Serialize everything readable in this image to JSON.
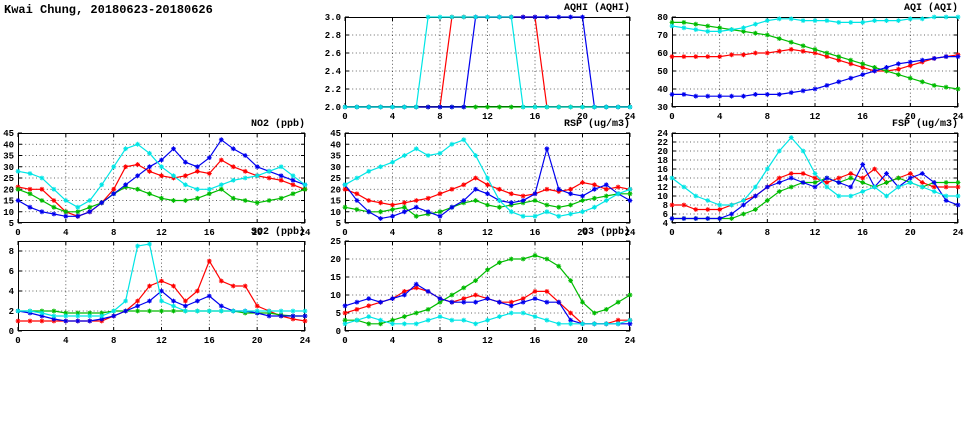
{
  "page_title": "Kwai Chung, 20180623-20180626",
  "series_colors": {
    "red": "#ff0000",
    "green": "#00bb00",
    "blue": "#0000ee",
    "cyan": "#00e5e5"
  },
  "chart_data": [
    {
      "type": "line",
      "id": "aqhi",
      "title": "AQHI (AQHI)",
      "xlim": [
        0,
        24
      ],
      "ylim": [
        2,
        3
      ],
      "x_start": 0,
      "x_step": 1,
      "xticks": [
        "0",
        "4",
        "8",
        "12",
        "16",
        "20",
        "24"
      ],
      "yticks": [
        "2.0",
        "2.2",
        "2.4",
        "2.6",
        "2.8",
        "3.0"
      ],
      "grid": true,
      "legend": "none",
      "series": [
        {
          "name": "red",
          "color": "#ff0000",
          "values": [
            2,
            2,
            2,
            2,
            2,
            2,
            2,
            2,
            2,
            3,
            3,
            3,
            3,
            3,
            3,
            3,
            3,
            2,
            2,
            2,
            2,
            2,
            2,
            2,
            2
          ]
        },
        {
          "name": "green",
          "color": "#00bb00",
          "values": [
            2,
            2,
            2,
            2,
            2,
            2,
            2,
            2,
            2,
            2,
            2,
            2,
            2,
            2,
            2,
            2,
            2,
            2,
            2,
            2,
            2,
            2,
            2,
            2,
            2
          ]
        },
        {
          "name": "blue",
          "color": "#0000ee",
          "values": [
            2,
            2,
            2,
            2,
            2,
            2,
            2,
            2,
            2,
            2,
            2,
            3,
            3,
            3,
            3,
            3,
            3,
            3,
            3,
            3,
            3,
            2,
            2,
            2,
            2
          ]
        },
        {
          "name": "cyan",
          "color": "#00e5e5",
          "values": [
            2,
            2,
            2,
            2,
            2,
            2,
            2,
            3,
            3,
            3,
            3,
            3,
            3,
            3,
            3,
            2,
            2,
            2,
            2,
            2,
            2,
            2,
            2,
            2,
            2
          ]
        }
      ]
    },
    {
      "type": "line",
      "id": "aqi",
      "title": "AQI (AQI)",
      "xlim": [
        0,
        24
      ],
      "ylim": [
        30,
        80
      ],
      "x_start": 0,
      "x_step": 1,
      "xticks": [
        "0",
        "4",
        "8",
        "12",
        "16",
        "20",
        "24"
      ],
      "yticks": [
        "30",
        "40",
        "50",
        "60",
        "70",
        "80"
      ],
      "grid": true,
      "legend": "none",
      "series": [
        {
          "name": "red",
          "color": "#ff0000",
          "values": [
            58,
            58,
            58,
            58,
            58,
            59,
            59,
            60,
            60,
            61,
            62,
            61,
            60,
            58,
            56,
            54,
            52,
            50,
            50,
            51,
            53,
            55,
            57,
            58,
            59
          ]
        },
        {
          "name": "green",
          "color": "#00bb00",
          "values": [
            77,
            77,
            76,
            75,
            74,
            73,
            72,
            71,
            70,
            68,
            66,
            64,
            62,
            60,
            58,
            56,
            54,
            52,
            50,
            48,
            46,
            44,
            42,
            41,
            40
          ]
        },
        {
          "name": "blue",
          "color": "#0000ee",
          "values": [
            37,
            37,
            36,
            36,
            36,
            36,
            36,
            37,
            37,
            37,
            38,
            39,
            40,
            42,
            44,
            46,
            48,
            50,
            52,
            54,
            55,
            56,
            57,
            58,
            58
          ]
        },
        {
          "name": "cyan",
          "color": "#00e5e5",
          "values": [
            75,
            74,
            73,
            72,
            72,
            73,
            74,
            76,
            78,
            79,
            79,
            78,
            78,
            78,
            77,
            77,
            77,
            78,
            78,
            78,
            79,
            79,
            80,
            80,
            80
          ]
        }
      ]
    },
    {
      "type": "line",
      "id": "no2",
      "title": "NO2 (ppb)",
      "xlim": [
        0,
        24
      ],
      "ylim": [
        5,
        45
      ],
      "x_start": 0,
      "x_step": 1,
      "xticks": [
        "0",
        "4",
        "8",
        "12",
        "16",
        "20",
        "24"
      ],
      "yticks": [
        "5",
        "10",
        "15",
        "20",
        "25",
        "30",
        "35",
        "40",
        "45"
      ],
      "grid": true,
      "legend": "none",
      "series": [
        {
          "name": "red",
          "color": "#ff0000",
          "values": [
            21,
            20,
            20,
            15,
            10,
            8,
            10,
            14,
            20,
            30,
            31,
            28,
            26,
            25,
            26,
            28,
            27,
            33,
            30,
            28,
            26,
            25,
            24,
            22,
            20
          ]
        },
        {
          "name": "green",
          "color": "#00bb00",
          "values": [
            20,
            18,
            15,
            12,
            10,
            10,
            12,
            14,
            18,
            21,
            20,
            18,
            16,
            15,
            15,
            16,
            18,
            20,
            16,
            15,
            14,
            15,
            16,
            18,
            20
          ]
        },
        {
          "name": "blue",
          "color": "#0000ee",
          "values": [
            15,
            12,
            10,
            9,
            8,
            8,
            10,
            14,
            18,
            22,
            26,
            30,
            33,
            38,
            32,
            30,
            34,
            42,
            38,
            35,
            30,
            28,
            26,
            24,
            22
          ]
        },
        {
          "name": "cyan",
          "color": "#00e5e5",
          "values": [
            28,
            27,
            25,
            20,
            15,
            12,
            15,
            22,
            30,
            38,
            40,
            36,
            30,
            26,
            22,
            20,
            20,
            22,
            24,
            25,
            26,
            28,
            30,
            26,
            22
          ]
        }
      ]
    },
    {
      "type": "line",
      "id": "rsp",
      "title": "RSP (ug/m3)",
      "xlim": [
        0,
        24
      ],
      "ylim": [
        5,
        45
      ],
      "x_start": 0,
      "x_step": 1,
      "xticks": [
        "0",
        "4",
        "8",
        "12",
        "16",
        "20",
        "24"
      ],
      "yticks": [
        "5",
        "10",
        "15",
        "20",
        "25",
        "30",
        "35",
        "40",
        "45"
      ],
      "grid": true,
      "legend": "none",
      "series": [
        {
          "name": "red",
          "color": "#ff0000",
          "values": [
            20,
            18,
            15,
            14,
            13,
            14,
            15,
            16,
            18,
            20,
            22,
            25,
            22,
            20,
            18,
            17,
            18,
            20,
            19,
            20,
            23,
            22,
            20,
            21,
            20
          ]
        },
        {
          "name": "green",
          "color": "#00bb00",
          "values": [
            12,
            11,
            10,
            10,
            11,
            12,
            8,
            9,
            10,
            12,
            14,
            15,
            13,
            12,
            13,
            14,
            15,
            13,
            12,
            13,
            15,
            16,
            17,
            18,
            18
          ]
        },
        {
          "name": "blue",
          "color": "#0000ee",
          "values": [
            22,
            15,
            10,
            7,
            8,
            10,
            12,
            10,
            8,
            12,
            15,
            20,
            18,
            15,
            14,
            15,
            18,
            38,
            20,
            18,
            17,
            20,
            22,
            18,
            15
          ]
        },
        {
          "name": "cyan",
          "color": "#00e5e5",
          "values": [
            22,
            25,
            28,
            30,
            32,
            35,
            38,
            35,
            36,
            40,
            42,
            35,
            25,
            15,
            10,
            8,
            8,
            10,
            8,
            9,
            10,
            12,
            15,
            18,
            20
          ]
        }
      ]
    },
    {
      "type": "line",
      "id": "fsp",
      "title": "FSP (ug/m3)",
      "xlim": [
        0,
        24
      ],
      "ylim": [
        4,
        24
      ],
      "x_start": 0,
      "x_step": 1,
      "xticks": [
        "0",
        "4",
        "8",
        "12",
        "16",
        "20",
        "24"
      ],
      "yticks": [
        "4",
        "6",
        "8",
        "10",
        "12",
        "14",
        "16",
        "18",
        "20",
        "22",
        "24"
      ],
      "grid": true,
      "legend": "none",
      "series": [
        {
          "name": "red",
          "color": "#ff0000",
          "values": [
            8,
            8,
            7,
            7,
            7,
            8,
            9,
            10,
            12,
            14,
            15,
            15,
            14,
            13,
            14,
            15,
            14,
            16,
            13,
            14,
            15,
            13,
            12,
            12,
            12
          ]
        },
        {
          "name": "green",
          "color": "#00bb00",
          "values": [
            5,
            5,
            5,
            5,
            5,
            5,
            6,
            7,
            9,
            11,
            12,
            13,
            13,
            14,
            13,
            14,
            13,
            12,
            13,
            14,
            13,
            12,
            13,
            13,
            13
          ]
        },
        {
          "name": "blue",
          "color": "#0000ee",
          "values": [
            5,
            5,
            5,
            5,
            5,
            6,
            8,
            10,
            12,
            13,
            14,
            13,
            12,
            14,
            13,
            12,
            17,
            12,
            15,
            12,
            14,
            15,
            13,
            9,
            8
          ]
        },
        {
          "name": "cyan",
          "color": "#00e5e5",
          "values": [
            14,
            12,
            10,
            9,
            8,
            8,
            9,
            12,
            16,
            20,
            23,
            20,
            15,
            12,
            10,
            10,
            11,
            12,
            10,
            12,
            13,
            12,
            11,
            10,
            10
          ]
        }
      ]
    },
    {
      "type": "line",
      "id": "so2",
      "title": "SO2 (ppb)",
      "xlim": [
        0,
        24
      ],
      "ylim": [
        0,
        9
      ],
      "x_start": 0,
      "x_step": 1,
      "xticks": [
        "0",
        "4",
        "8",
        "12",
        "16",
        "20",
        "24"
      ],
      "yticks": [
        "0",
        "2",
        "4",
        "6",
        "8"
      ],
      "grid": true,
      "legend": "none",
      "series": [
        {
          "name": "red",
          "color": "#ff0000",
          "values": [
            1,
            1,
            1,
            1,
            1,
            1,
            1,
            1,
            1.5,
            2,
            3,
            4.5,
            5,
            4.5,
            3,
            4,
            7,
            5,
            4.5,
            4.5,
            2.5,
            2,
            1.5,
            1.2,
            1
          ]
        },
        {
          "name": "green",
          "color": "#00bb00",
          "values": [
            2,
            2,
            2,
            2,
            1.8,
            1.8,
            1.8,
            1.8,
            2,
            2,
            2,
            2,
            2,
            2,
            2,
            2,
            2,
            2,
            2,
            1.8,
            1.8,
            1.8,
            1.6,
            1.5,
            1.5
          ]
        },
        {
          "name": "blue",
          "color": "#0000ee",
          "values": [
            2,
            1.8,
            1.5,
            1.2,
            1,
            1,
            1,
            1.2,
            1.5,
            2,
            2.5,
            3,
            4,
            3,
            2.5,
            3,
            3.5,
            2.5,
            2,
            2,
            1.8,
            1.5,
            1.5,
            1.5,
            1.5
          ]
        },
        {
          "name": "cyan",
          "color": "#00e5e5",
          "values": [
            2,
            2,
            1.8,
            1.5,
            1.5,
            1.5,
            1.5,
            1.5,
            2,
            3,
            8.5,
            8.7,
            3,
            2.5,
            2,
            2,
            2,
            2,
            2,
            2,
            2,
            2,
            2,
            2,
            2
          ]
        }
      ]
    },
    {
      "type": "line",
      "id": "o3",
      "title": "O3 (ppb)",
      "xlim": [
        0,
        24
      ],
      "ylim": [
        0,
        25
      ],
      "x_start": 0,
      "x_step": 1,
      "xticks": [
        "0",
        "4",
        "8",
        "12",
        "16",
        "20",
        "24"
      ],
      "yticks": [
        "0",
        "5",
        "10",
        "15",
        "20",
        "25"
      ],
      "grid": true,
      "legend": "none",
      "series": [
        {
          "name": "red",
          "color": "#ff0000",
          "values": [
            5,
            6,
            7,
            8,
            9,
            11,
            12,
            11,
            9,
            8,
            9,
            10,
            9,
            8,
            8,
            9,
            11,
            11,
            8,
            5,
            2,
            2,
            2,
            3,
            3
          ]
        },
        {
          "name": "green",
          "color": "#00bb00",
          "values": [
            3,
            3,
            2,
            2,
            3,
            4,
            5,
            6,
            8,
            10,
            12,
            14,
            17,
            19,
            20,
            20,
            21,
            20,
            18,
            14,
            8,
            5,
            6,
            8,
            10
          ]
        },
        {
          "name": "blue",
          "color": "#0000ee",
          "values": [
            7,
            8,
            9,
            8,
            9,
            10,
            13,
            11,
            9,
            8,
            8,
            8,
            9,
            8,
            7,
            8,
            9,
            8,
            8,
            3,
            2,
            2,
            2,
            2,
            2
          ]
        },
        {
          "name": "cyan",
          "color": "#00e5e5",
          "values": [
            2,
            3,
            4,
            3,
            2,
            2,
            2,
            3,
            4,
            3,
            3,
            2,
            3,
            4,
            5,
            5,
            4,
            3,
            2,
            2,
            2,
            2,
            2,
            2,
            3
          ]
        }
      ]
    }
  ]
}
